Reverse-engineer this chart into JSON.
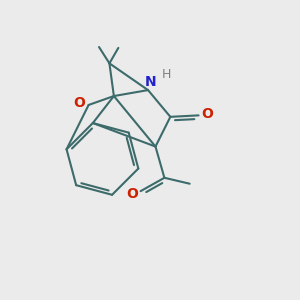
{
  "bg_color": "#ebebeb",
  "bond_color": "#3d6b6b",
  "o_color": "#cc2200",
  "n_color": "#2222cc",
  "h_color": "#808080",
  "line_width": 1.5,
  "figsize": [
    3.0,
    3.0
  ],
  "dpi": 100,
  "xlim": [
    0,
    10
  ],
  "ylim": [
    0,
    10
  ]
}
